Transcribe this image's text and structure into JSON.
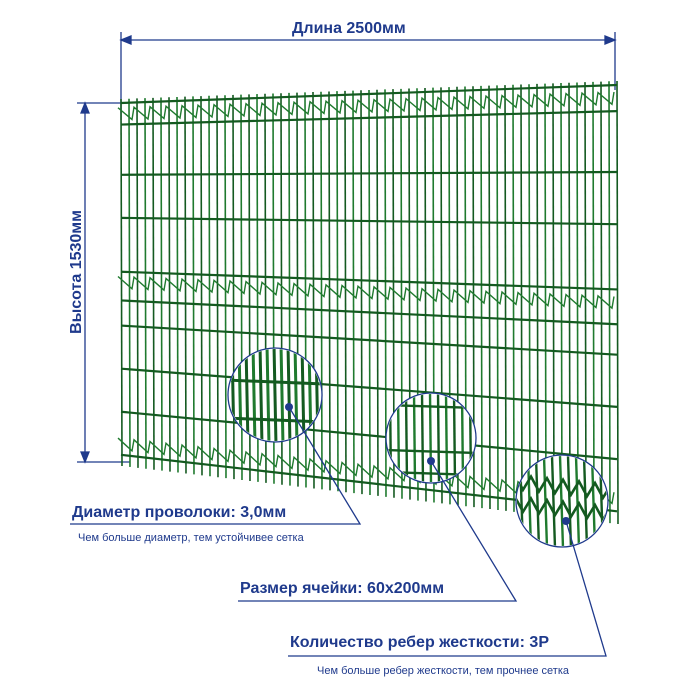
{
  "dimensions": {
    "length": "Длина 2500мм",
    "height": "Высота 1530мм"
  },
  "callouts": {
    "wire": {
      "title": "Диаметр проволоки: 3,0мм",
      "subtitle": "Чем больше диаметр, тем устойчивее сетка"
    },
    "mesh": {
      "title": "Размер ячейки: 60x200мм"
    },
    "ribs": {
      "title": "Количество ребер жесткости: 3Р",
      "subtitle": "Чем больше ребер жесткости, тем прочнее сетка"
    }
  },
  "colors": {
    "fence": "#1f7a2e",
    "fence_dark": "#145a20",
    "accent": "#1f3a8c"
  }
}
